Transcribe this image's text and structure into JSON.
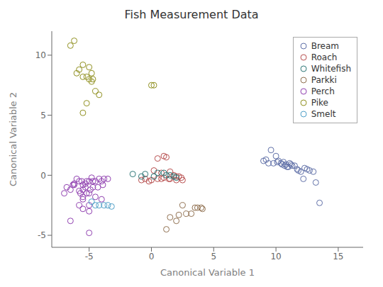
{
  "chart_data": {
    "type": "scatter",
    "title": "Fish Measurement Data",
    "xlabel": "Canonical Variable 1",
    "ylabel": "Canonical Variable 2",
    "xlim": [
      -8,
      17
    ],
    "ylim": [
      -6,
      12
    ],
    "xticks": [
      -5,
      0,
      5,
      10,
      15
    ],
    "yticks": [
      -5,
      0,
      5,
      10
    ],
    "grid": false,
    "legend": "upper right",
    "marker": "circle",
    "series": [
      {
        "name": "Bream",
        "color": "#6070a8",
        "x": [
          9.0,
          9.2,
          9.4,
          9.6,
          9.8,
          10.0,
          10.1,
          10.2,
          10.4,
          10.5,
          10.6,
          10.7,
          10.8,
          10.9,
          11.0,
          11.1,
          11.2,
          11.3,
          11.5,
          11.7,
          11.8,
          12.0,
          12.2,
          12.3,
          12.5,
          12.7,
          13.0,
          13.2,
          13.5
        ],
        "y": [
          1.2,
          1.3,
          1.0,
          2.1,
          1.0,
          1.6,
          1.1,
          1.2,
          1.0,
          0.9,
          1.1,
          0.8,
          0.9,
          0.7,
          0.7,
          1.0,
          0.9,
          0.8,
          0.8,
          0.5,
          0.4,
          0.3,
          -0.3,
          0.6,
          0.5,
          0.4,
          0.3,
          -0.6,
          -2.3
        ]
      },
      {
        "name": "Roach",
        "color": "#b85050",
        "x": [
          -0.8,
          -0.5,
          -0.2,
          0.0,
          0.2,
          0.5,
          0.5,
          0.8,
          0.8,
          1.0,
          1.0,
          1.2,
          1.4,
          1.5,
          1.5,
          1.8,
          2.0,
          2.0,
          2.2,
          2.4,
          2.5
        ],
        "y": [
          -0.4,
          -0.3,
          -0.5,
          -0.4,
          0.4,
          1.4,
          -0.3,
          0.2,
          -0.3,
          1.6,
          -0.2,
          1.5,
          -0.3,
          0.3,
          -0.3,
          0.0,
          -0.1,
          -0.4,
          -0.1,
          -0.2,
          -0.4
        ]
      },
      {
        "name": "Whitefish",
        "color": "#307878",
        "x": [
          -1.5,
          -0.8,
          -0.5,
          0.2,
          0.5,
          1.0,
          1.2,
          1.5,
          1.8,
          2.0
        ],
        "y": [
          0.1,
          -0.1,
          0.1,
          -0.1,
          0.2,
          0.2,
          0.0,
          0.0,
          -0.1,
          -0.2
        ]
      },
      {
        "name": "Parkki",
        "color": "#907050",
        "x": [
          1.2,
          1.5,
          2.0,
          2.2,
          2.5,
          2.8,
          3.2,
          3.5,
          3.7,
          4.0,
          4.1
        ],
        "y": [
          -4.5,
          -3.5,
          -3.8,
          -3.3,
          -2.5,
          -3.2,
          -3.2,
          -2.7,
          -2.7,
          -2.7,
          -2.8
        ]
      },
      {
        "name": "Perch",
        "color": "#9040b0",
        "x": [
          -7.0,
          -6.8,
          -6.5,
          -6.3,
          -6.2,
          -6.0,
          -5.8,
          -5.8,
          -5.7,
          -5.6,
          -5.5,
          -5.5,
          -5.5,
          -5.3,
          -5.3,
          -5.2,
          -5.2,
          -5.0,
          -5.0,
          -5.0,
          -4.9,
          -4.8,
          -4.7,
          -4.7,
          -4.5,
          -4.5,
          -4.3,
          -4.2,
          -4.0,
          -4.0,
          -3.9,
          -3.8,
          -3.5,
          -5.5,
          -5.8,
          -6.2,
          -5.0,
          -5.5,
          -6.5,
          -5.0
        ],
        "y": [
          -1.5,
          -1.0,
          -1.2,
          -0.8,
          -0.7,
          -0.3,
          -0.5,
          -1.3,
          -1.5,
          -0.5,
          -0.8,
          -1.2,
          -2.0,
          -0.7,
          -1.0,
          -1.5,
          -0.5,
          -0.5,
          -1.5,
          -2.5,
          -1.2,
          -0.2,
          -0.5,
          -1.0,
          -0.5,
          -1.8,
          -1.0,
          -0.3,
          -0.5,
          -2.0,
          -0.8,
          -0.3,
          -0.3,
          -1.8,
          -2.5,
          -0.8,
          -3.0,
          -2.8,
          -3.8,
          -4.8
        ]
      },
      {
        "name": "Pike",
        "color": "#909020",
        "x": [
          -6.5,
          -6.2,
          -6.0,
          -5.8,
          -5.5,
          -5.5,
          -5.2,
          -5.0,
          -5.0,
          -4.8,
          -4.8,
          -4.7,
          -4.5,
          -4.2,
          -5.5,
          -5.2,
          0.0,
          0.2
        ],
        "y": [
          10.8,
          11.2,
          8.5,
          8.8,
          9.2,
          8.2,
          8.2,
          8.0,
          9.0,
          8.5,
          7.8,
          8.0,
          7.0,
          6.7,
          5.2,
          6.0,
          7.5,
          7.5
        ]
      },
      {
        "name": "Smelt",
        "color": "#50a0c8",
        "x": [
          -4.8,
          -4.5,
          -4.2,
          -3.8,
          -3.5,
          -3.2
        ],
        "y": [
          -2.2,
          -2.5,
          -2.5,
          -2.5,
          -2.5,
          -2.6
        ]
      }
    ]
  }
}
